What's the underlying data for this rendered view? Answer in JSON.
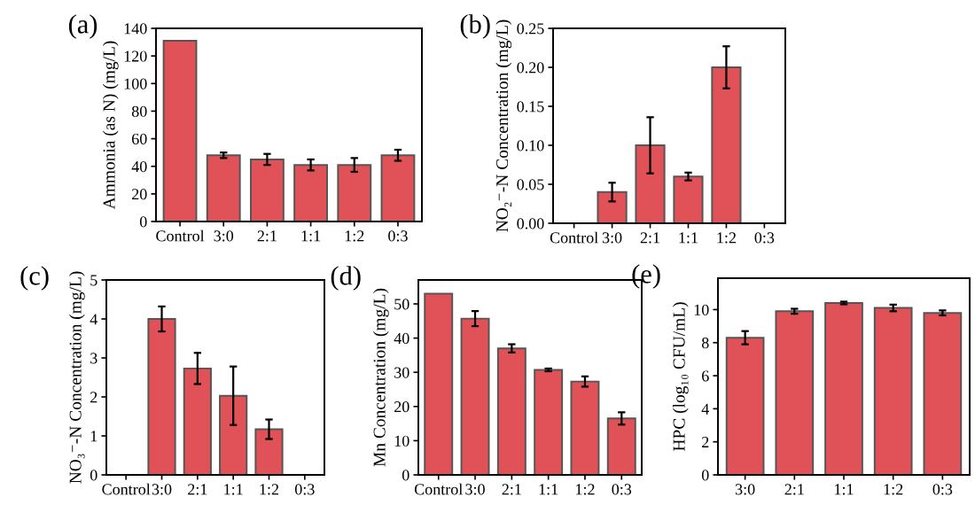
{
  "chart_data": [
    {
      "type": "bar",
      "title": "(a)",
      "ylabel": "Ammonia (as N) (mg/L)",
      "categories": [
        "Control",
        "3:0",
        "2:1",
        "1:1",
        "1:2",
        "0:3"
      ],
      "values": [
        131,
        48,
        45,
        41,
        41,
        48
      ],
      "errors": [
        null,
        2,
        4,
        4,
        5,
        4
      ],
      "color": "#e05257",
      "ylim": [
        0,
        140
      ],
      "yticks": [
        0,
        20,
        40,
        60,
        80,
        100,
        120,
        140
      ],
      "grid": false,
      "legend": false
    },
    {
      "type": "bar",
      "title": "(b)",
      "ylabel": "NO₂⁻-N Concentration (mg/L)",
      "categories": [
        "Control",
        "3:0",
        "2:1",
        "1:1",
        "1:2",
        "0:3"
      ],
      "values": [
        null,
        0.04,
        0.1,
        0.06,
        0.2,
        null
      ],
      "errors": [
        null,
        0.012,
        0.036,
        0.005,
        0.027,
        null
      ],
      "color": "#e05257",
      "ylim": [
        0,
        0.25
      ],
      "yticks": [
        {
          "value": 0,
          "label": "0.00"
        },
        {
          "value": 0.05,
          "label": "0.05"
        },
        {
          "value": 0.1,
          "label": "0.10"
        },
        {
          "value": 0.15,
          "label": "0.15"
        },
        {
          "value": 0.2,
          "label": "0.20"
        },
        {
          "value": 0.25,
          "label": "0.25"
        }
      ],
      "grid": false,
      "legend": false
    },
    {
      "type": "bar",
      "title": "(c)",
      "ylabel": "NO₃⁻-N Concentration (mg/L)",
      "categories": [
        "Control",
        "3:0",
        "2:1",
        "1:1",
        "1:2",
        "0:3"
      ],
      "values": [
        null,
        4.0,
        2.73,
        2.03,
        1.17,
        null
      ],
      "errors": [
        null,
        0.32,
        0.4,
        0.75,
        0.25,
        null
      ],
      "color": "#e05257",
      "ylim": [
        0,
        5
      ],
      "yticks": [
        0,
        1,
        2,
        3,
        4,
        5
      ],
      "grid": false,
      "legend": false
    },
    {
      "type": "bar",
      "title": "(d)",
      "ylabel": "Mn Concentration (mg/L)",
      "categories": [
        "Control",
        "3:0",
        "2:1",
        "1:1",
        "1:2",
        "0:3"
      ],
      "values": [
        53,
        45.7,
        37,
        30.7,
        27.3,
        16.5
      ],
      "errors": [
        null,
        2.2,
        1.2,
        0.4,
        1.5,
        1.8
      ],
      "color": "#e05257",
      "ylim": [
        0,
        57
      ],
      "yticks": [
        0,
        10,
        20,
        30,
        40,
        50
      ],
      "grid": false,
      "legend": false
    },
    {
      "type": "bar",
      "title": "(e)",
      "ylabel": "HPC (log₁₀ CFU/mL)",
      "categories": [
        "3:0",
        "2:1",
        "1:1",
        "1:2",
        "0:3"
      ],
      "values": [
        8.3,
        9.9,
        10.4,
        10.1,
        9.8
      ],
      "errors": [
        0.4,
        0.15,
        0.08,
        0.2,
        0.15
      ],
      "color": "#e05257",
      "ylim": [
        0,
        11.9
      ],
      "yticks": [
        0,
        2,
        4,
        6,
        8,
        10
      ],
      "grid": false,
      "legend": false
    }
  ]
}
